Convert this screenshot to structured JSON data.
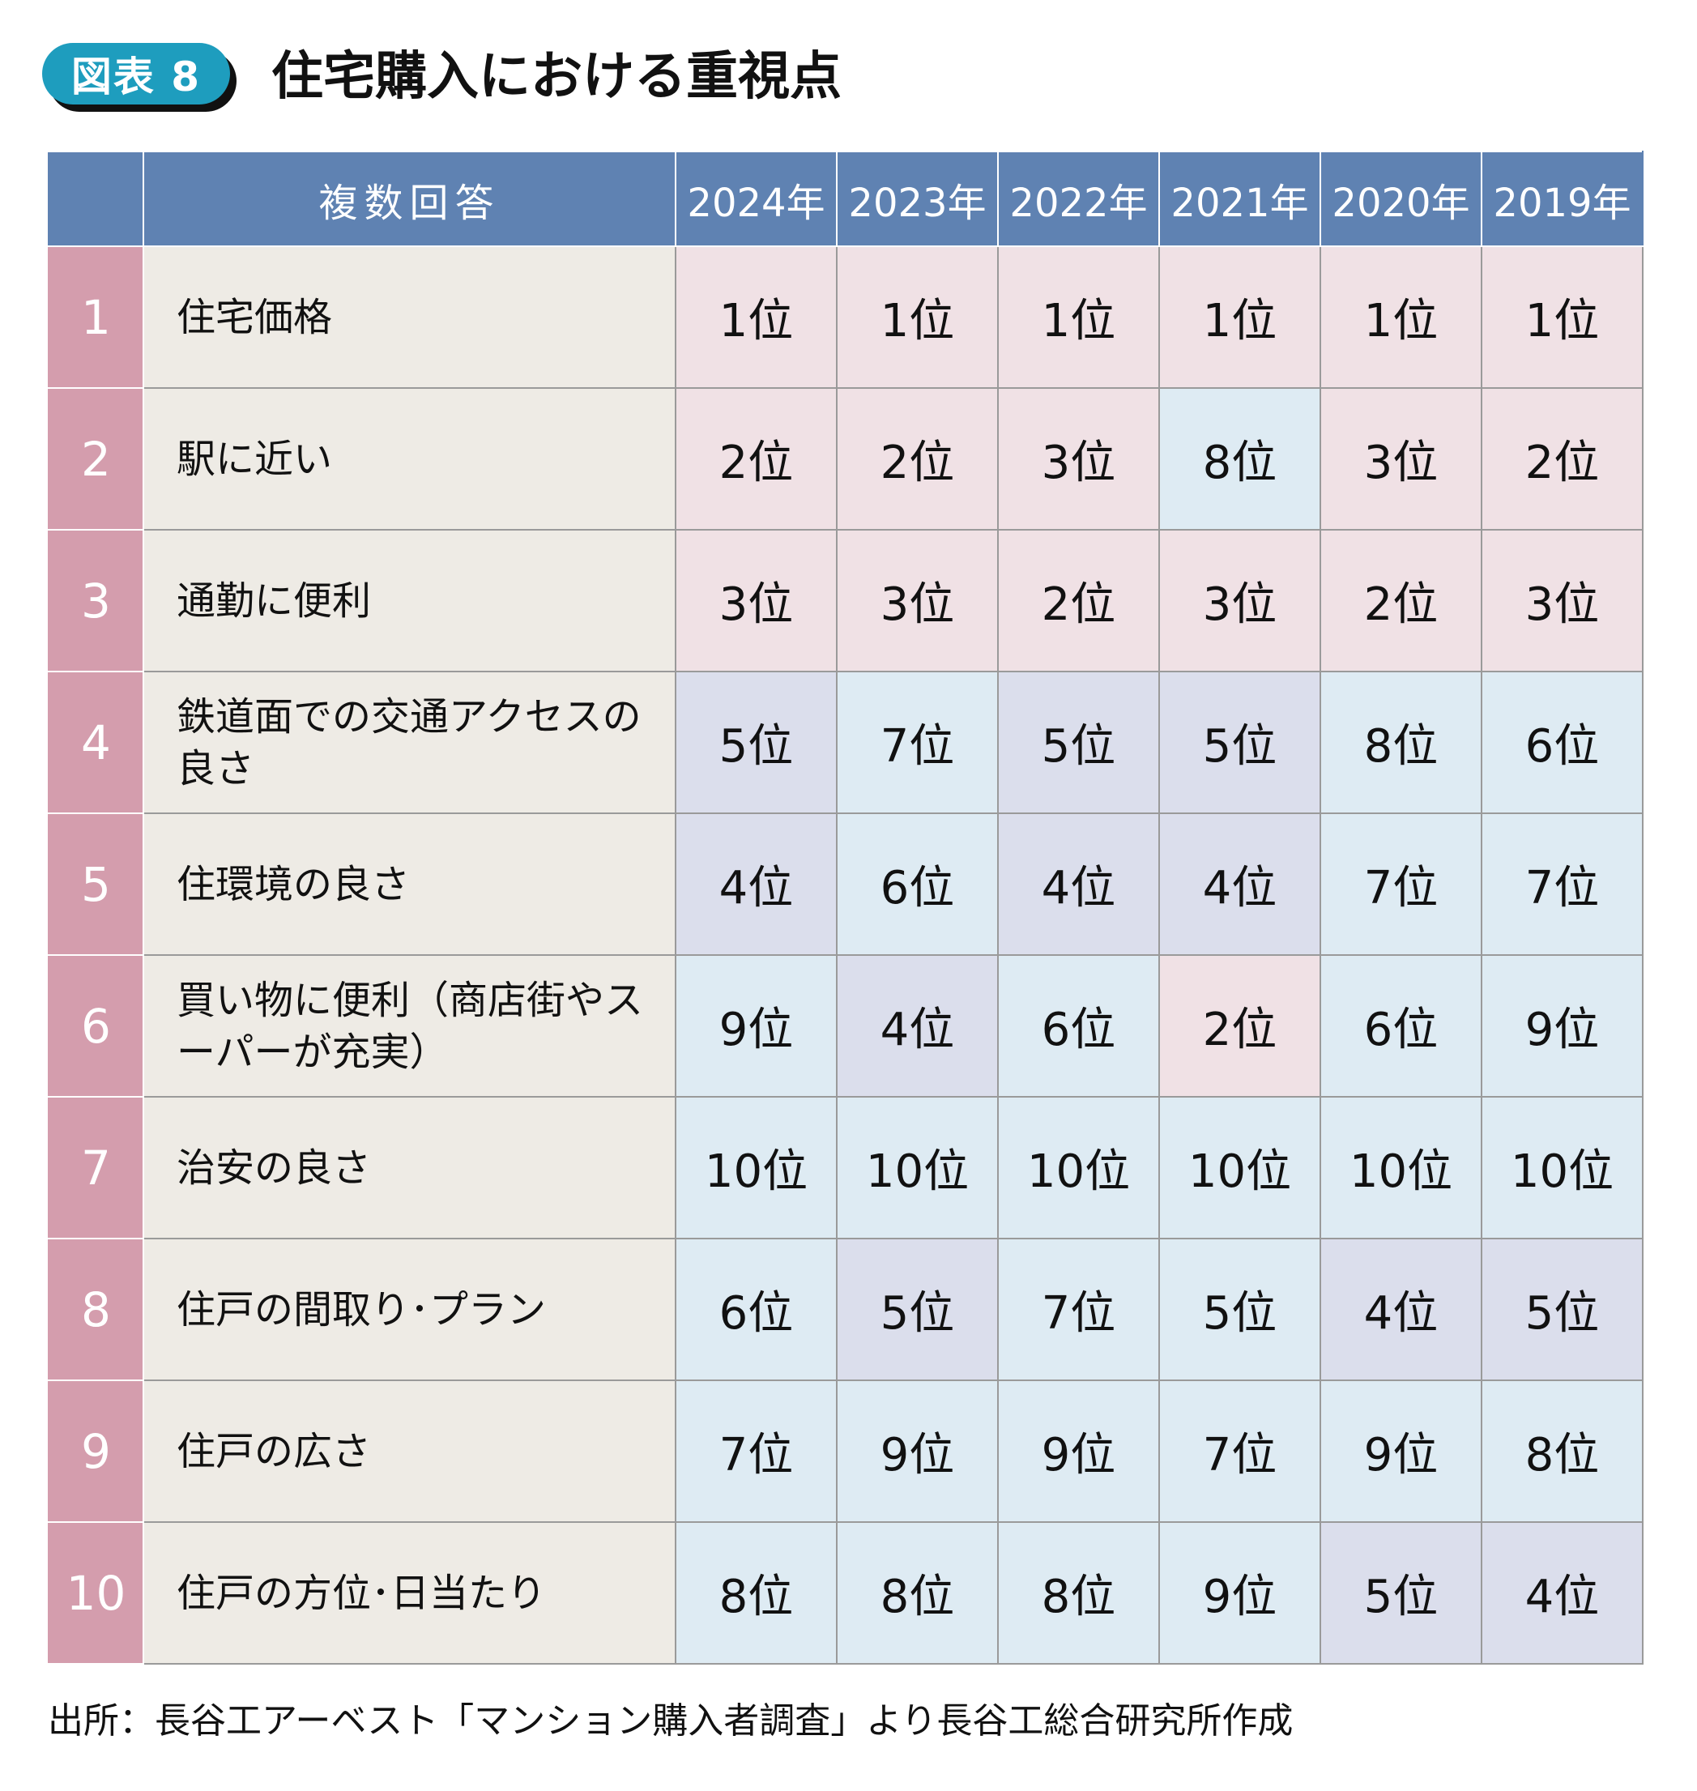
{
  "badge": "図表 8",
  "title": "住宅購入における重視点",
  "header": {
    "item": "複数回答",
    "years": [
      "2024年",
      "2023年",
      "2022年",
      "2021年",
      "2020年",
      "2019年"
    ]
  },
  "colors": {
    "header": "#5f82b2",
    "rank": "#d49dad",
    "item": "#eeebe5",
    "pink": "#f0e1e5",
    "lavender": "#dbdeec",
    "blue": "#deebf3",
    "badge": "#1e9dbe"
  },
  "rows": [
    {
      "rank": "1",
      "item": "住宅価格",
      "cells": [
        "1位",
        "1位",
        "1位",
        "1位",
        "1位",
        "1位"
      ],
      "tones": [
        "p",
        "p",
        "p",
        "p",
        "p",
        "p"
      ]
    },
    {
      "rank": "2",
      "item": "駅に近い",
      "cells": [
        "2位",
        "2位",
        "3位",
        "8位",
        "3位",
        "2位"
      ],
      "tones": [
        "p",
        "p",
        "p",
        "b",
        "p",
        "p"
      ]
    },
    {
      "rank": "3",
      "item": "通勤に便利",
      "cells": [
        "3位",
        "3位",
        "2位",
        "3位",
        "2位",
        "3位"
      ],
      "tones": [
        "p",
        "p",
        "p",
        "p",
        "p",
        "p"
      ]
    },
    {
      "rank": "4",
      "item": "鉄道面での交通アクセスの良さ",
      "cells": [
        "5位",
        "7位",
        "5位",
        "5位",
        "8位",
        "6位"
      ],
      "tones": [
        "l",
        "b",
        "l",
        "l",
        "b",
        "b"
      ]
    },
    {
      "rank": "5",
      "item": "住環境の良さ",
      "cells": [
        "4位",
        "6位",
        "4位",
        "4位",
        "7位",
        "7位"
      ],
      "tones": [
        "l",
        "b",
        "l",
        "l",
        "b",
        "b"
      ]
    },
    {
      "rank": "6",
      "item": "買い物に便利（商店街やスーパーが充実）",
      "cells": [
        "9位",
        "4位",
        "6位",
        "2位",
        "6位",
        "9位"
      ],
      "tones": [
        "b",
        "l",
        "b",
        "p",
        "b",
        "b"
      ]
    },
    {
      "rank": "7",
      "item": "治安の良さ",
      "cells": [
        "10位",
        "10位",
        "10位",
        "10位",
        "10位",
        "10位"
      ],
      "tones": [
        "b",
        "b",
        "b",
        "b",
        "b",
        "b"
      ]
    },
    {
      "rank": "8",
      "item": "住戸の間取り･プラン",
      "cells": [
        "6位",
        "5位",
        "7位",
        "5位",
        "4位",
        "5位"
      ],
      "tones": [
        "b",
        "l",
        "b",
        "b",
        "l",
        "l"
      ]
    },
    {
      "rank": "9",
      "item": "住戸の広さ",
      "cells": [
        "7位",
        "9位",
        "9位",
        "7位",
        "9位",
        "8位"
      ],
      "tones": [
        "b",
        "b",
        "b",
        "b",
        "b",
        "b"
      ]
    },
    {
      "rank": "10",
      "item": "住戸の方位･日当たり",
      "cells": [
        "8位",
        "8位",
        "8位",
        "9位",
        "5位",
        "4位"
      ],
      "tones": [
        "b",
        "b",
        "b",
        "b",
        "l",
        "l"
      ]
    }
  ],
  "footer": "出所：長谷工アーベスト「マンション購入者調査」より長谷工総合研究所作成"
}
